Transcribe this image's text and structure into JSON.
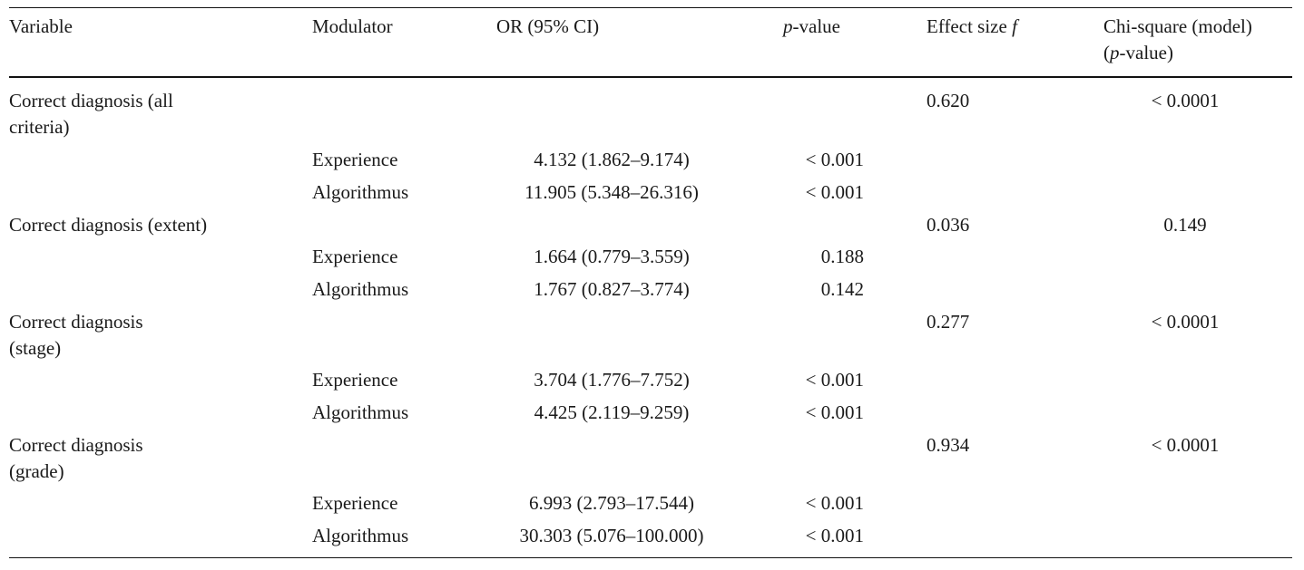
{
  "header": {
    "variable": "Variable",
    "modulator": "Modulator",
    "or": "OR (95% CI)",
    "p_italic": "p",
    "p_rest": "-value",
    "effect_prefix": "Effect size ",
    "effect_italic": "f",
    "chi_line1": "Chi-square (model)",
    "chi_open": "(",
    "chi_italic": "p",
    "chi_rest": "-value)"
  },
  "groups": [
    {
      "variable": "Correct diagnosis (all criteria)",
      "effect_f": "0.620",
      "chi_p": "< 0.0001",
      "rows": [
        {
          "modulator": "Experience",
          "or": "4.132 (1.862–9.174)",
          "p": "< 0.001"
        },
        {
          "modulator": "Algorithmus",
          "or": "11.905 (5.348–26.316)",
          "p": "< 0.001"
        }
      ]
    },
    {
      "variable": "Correct diagnosis (extent)",
      "effect_f": "0.036",
      "chi_p": "0.149",
      "rows": [
        {
          "modulator": "Experience",
          "or": "1.664 (0.779–3.559)",
          "p": "0.188"
        },
        {
          "modulator": "Algorithmus",
          "or": "1.767 (0.827–3.774)",
          "p": "0.142"
        }
      ]
    },
    {
      "variable": "Correct diagnosis (stage)",
      "effect_f": "0.277",
      "chi_p": "< 0.0001",
      "rows": [
        {
          "modulator": "Experience",
          "or": "3.704 (1.776–7.752)",
          "p": "< 0.001"
        },
        {
          "modulator": "Algorithmus",
          "or": "4.425 (2.119–9.259)",
          "p": "< 0.001"
        }
      ]
    },
    {
      "variable": "Correct diagnosis (grade)",
      "effect_f": "0.934",
      "chi_p": "< 0.0001",
      "rows": [
        {
          "modulator": "Experience",
          "or": "6.993 (2.793–17.544)",
          "p": "< 0.001"
        },
        {
          "modulator": "Algorithmus",
          "or": "30.303 (5.076–100.000)",
          "p": "< 0.001"
        }
      ]
    }
  ]
}
